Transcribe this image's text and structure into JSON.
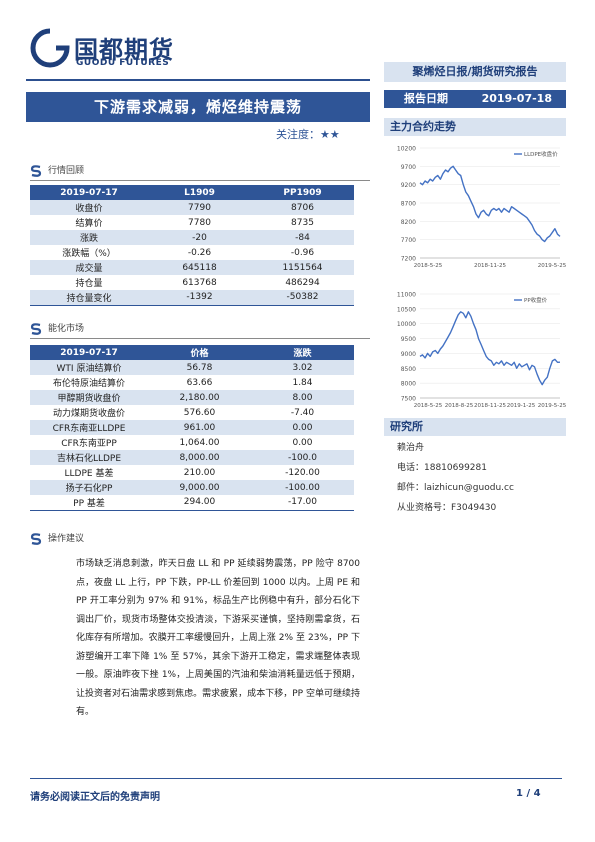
{
  "brand": {
    "name_cn": "国都期货",
    "name_en": "GUODU FUTURES"
  },
  "report": {
    "type": "聚烯烃日报/期货研究报告",
    "date_label": "报告日期",
    "date_value": "2019-07-18",
    "title": "下游需求减弱，烯烃维持震荡",
    "attention_label": "关注度：",
    "attention_stars": "★★"
  },
  "market_review": {
    "heading": "行情回顾",
    "columns": [
      "2019-07-17",
      "L1909",
      "PP1909"
    ],
    "rows": [
      [
        "收盘价",
        "7790",
        "8706"
      ],
      [
        "结算价",
        "7780",
        "8735"
      ],
      [
        "涨跌",
        "-20",
        "-84"
      ],
      [
        "涨跌幅（%）",
        "-0.26",
        "-0.96"
      ],
      [
        "成交量",
        "645118",
        "1151564"
      ],
      [
        "持仓量",
        "613768",
        "486294"
      ],
      [
        "持仓量变化",
        "-1392",
        "-50382"
      ]
    ]
  },
  "energy_market": {
    "heading": "能化市场",
    "columns": [
      "2019-07-17",
      "价格",
      "涨跌"
    ],
    "rows": [
      [
        "WTI 原油结算价",
        "56.78",
        "3.02"
      ],
      [
        "布伦特原油结算价",
        "63.66",
        "1.84"
      ],
      [
        "甲醇期货收盘价",
        "2,180.00",
        "8.00"
      ],
      [
        "动力煤期货收盘价",
        "576.60",
        "-7.40"
      ],
      [
        "CFR东南亚LLDPE",
        "961.00",
        "0.00"
      ],
      [
        "CFR东南亚PP",
        "1,064.00",
        "0.00"
      ],
      [
        "吉林石化LLDPE",
        "8,000.00",
        "-100.0"
      ],
      [
        "LLDPE 基差",
        "210.00",
        "-120.00"
      ],
      [
        "扬子石化PP",
        "9,000.00",
        "-100.00"
      ],
      [
        "PP 基差",
        "294.00",
        "-17.00"
      ]
    ]
  },
  "advice": {
    "heading": "操作建议",
    "text": "市场缺乏消息刺激，昨天日盘 LL 和 PP 延续弱势震荡，PP 险守 8700 点，夜盘 LL 上行，PP 下跌，PP-LL 价差回到 1000 以内。上周 PE 和 PP 开工率分别为 97% 和 91%，标品生产比例稳中有升，部分石化下调出厂价，现货市场整体交投清淡，下游采买谨慎，坚持刚需拿货，石化库存有所增加。农膜开工率缓慢回升，上周上涨 2% 至 23%，PP 下游塑编开工率下降 1% 至 57%，其余下游开工稳定，需求端整体表现一般。原油昨夜下挫 1%，上周美国的汽油和柴油消耗量远低于预期，让投资者对石油需求感到焦虑。需求疲累，成本下移，PP 空单可继续持有。"
  },
  "sidebar": {
    "trend_heading": "主力合约走势",
    "research_heading": "研究所",
    "analyst_name": "赖治舟",
    "phone": "电话：18810699281",
    "email": "邮件：laizhicun@guodu.cc",
    "license": "从业资格号：F3049430"
  },
  "chart_data": [
    {
      "type": "line",
      "series": [
        {
          "name": "LLDPE收盘价",
          "values": [
            9250,
            9200,
            9300,
            9250,
            9350,
            9300,
            9400,
            9450,
            9350,
            9500,
            9600,
            9550,
            9650,
            9700,
            9600,
            9500,
            9450,
            9200,
            9000,
            8900,
            8750,
            8600,
            8400,
            8300,
            8450,
            8500,
            8400,
            8350,
            8500,
            8550,
            8500,
            8550,
            8450,
            8550,
            8500,
            8450,
            8600,
            8550,
            8500,
            8450,
            8400,
            8350,
            8300,
            8200,
            8100,
            7950,
            7850,
            7800,
            7700,
            7650,
            7750,
            7800,
            7900,
            8000,
            7850,
            7790
          ]
        }
      ],
      "ylim": [
        7200,
        10200
      ],
      "yticks": [
        "7200",
        "7700",
        "8200",
        "8700",
        "9200",
        "9700",
        "10200"
      ],
      "xticks": [
        "2018-5-25",
        "2018-11-25",
        "2019-5-25"
      ]
    },
    {
      "type": "line",
      "series": [
        {
          "name": "PP收盘价",
          "values": [
            8900,
            8950,
            8850,
            9000,
            8900,
            9050,
            9100,
            9000,
            9150,
            9250,
            9400,
            9550,
            9700,
            9900,
            10100,
            10300,
            10400,
            10350,
            10200,
            10400,
            10250,
            10000,
            9800,
            9500,
            9300,
            9100,
            8900,
            8800,
            8750,
            8600,
            8700,
            8650,
            8750,
            8600,
            8700,
            8650,
            8600,
            8700,
            8500,
            8650,
            8550,
            8600,
            8650,
            8450,
            8600,
            8550,
            8300,
            8100,
            7950,
            8100,
            8200,
            8500,
            8750,
            8800,
            8700,
            8706
          ]
        }
      ],
      "ylim": [
        7500,
        11000
      ],
      "yticks": [
        "7500",
        "8000",
        "8500",
        "9000",
        "9500",
        "10000",
        "10500",
        "11000"
      ],
      "xticks": [
        "2018-5-25",
        "2018-8-25",
        "2018-11-25",
        "2019-1-25",
        "2019-5-25"
      ]
    }
  ],
  "footer": {
    "disclaimer": "请务必阅读正文后的免责声明",
    "page": "1 / 4"
  },
  "colors": {
    "primary": "#2f5597",
    "light": "#d9e3f0",
    "line": "#4472c4"
  }
}
